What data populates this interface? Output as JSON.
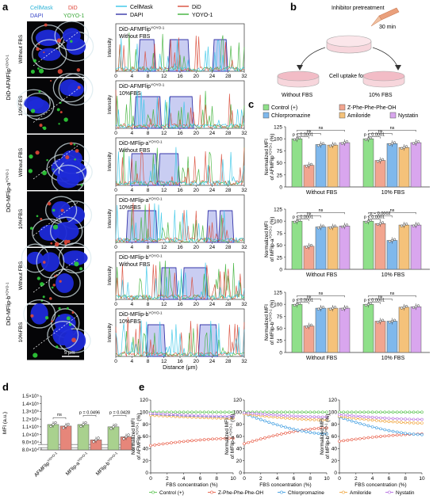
{
  "panels": {
    "a": "a",
    "b": "b",
    "c": "c",
    "d": "d",
    "e": "e"
  },
  "micro": {
    "channels": {
      "cellmask": "CellMask",
      "did": "DiD",
      "dapi": "DAPI",
      "yoyo": "YOYO-1"
    },
    "group_labels": [
      {
        "base": "DiD-AFMFlip",
        "sup": "YOYO-1"
      },
      {
        "base": "DiD-MFlip-a",
        "sup": "YOYO-1"
      },
      {
        "base": "DiD-MFlip-b",
        "sup": "YOYO-1"
      }
    ],
    "row_labels": [
      "Without FBS",
      "10%FBS",
      "Without FBS",
      "10%FBS",
      "Without FBS",
      "10%FBS"
    ],
    "scalebar": "5 μm"
  },
  "profiles": {
    "legend": [
      "CellMask",
      "DiD",
      "DAPI",
      "YOYO-1"
    ],
    "colors": {
      "cellmask": "#39c6e8",
      "did": "#d94d3a",
      "dapi": "#3535a8",
      "yoyo": "#3fb23a"
    },
    "ylabel": "Intensity",
    "xlabel": "Distance (μm)",
    "xticks": [
      "0",
      "4",
      "8",
      "12",
      "16",
      "20",
      "24",
      "28",
      "32"
    ],
    "titles": [
      {
        "base": "DiD-AFMFlip",
        "sup": "YOYO-1",
        "cond": "Without FBS"
      },
      {
        "base": "DiD-AFMFlip",
        "sup": "YOYO-1",
        "cond": "10%FBS"
      },
      {
        "base": "DiD-MFlip-a",
        "sup": "YOYO-1",
        "cond": "Without FBS"
      },
      {
        "base": "DiD-MFlip-a",
        "sup": "YOYO-1",
        "cond": "10%FBS"
      },
      {
        "base": "DiD-MFlip-b",
        "sup": "YOYO-1",
        "cond": "Without FBS"
      },
      {
        "base": "DiD-MFlip-b",
        "sup": "YOYO-1",
        "cond": "10%FBS"
      }
    ],
    "dapi_blocks": [
      [
        [
          6,
          9.5
        ],
        [
          13.5,
          18
        ],
        [
          24.5,
          27.5
        ]
      ],
      [
        [
          5,
          11
        ],
        [
          13.5,
          19
        ]
      ],
      [
        [
          4,
          10
        ],
        [
          11,
          15.5
        ]
      ],
      [
        [
          3,
          10
        ],
        [
          23,
          25
        ],
        [
          26,
          29
        ]
      ],
      [
        [
          11.5,
          15
        ],
        [
          17,
          22.5
        ]
      ],
      [
        [
          8,
          12
        ],
        [
          21,
          25
        ]
      ]
    ]
  },
  "schematic": {
    "inhibitor": "Inhibitor pretreatment",
    "time": "30 min",
    "uptake": "Cell uptake for 2 h",
    "left": "Without FBS",
    "right": "10% FBS"
  },
  "legend_c": [
    {
      "label": "Control (+)",
      "color": "#8fe08a"
    },
    {
      "label": "Z-Phe-Phe-Phe-OH",
      "color": "#f2a58f"
    },
    {
      "label": "Chlorpromazine",
      "color": "#7fb8ec"
    },
    {
      "label": "Amiloride",
      "color": "#f5c27a"
    },
    {
      "label": "Nystatin",
      "color": "#d9a6ee"
    }
  ],
  "c_texts": {
    "ylabels": [
      {
        "l1": "Normalized MFI",
        "l2base": "of AFMFlip",
        "sup": "YOYO-1",
        "tail": " (%)"
      },
      {
        "l1": "Normalized MFI",
        "l2base": "of MFlip-a",
        "sup": "YOYO-1",
        "tail": " (%)"
      },
      {
        "l1": "Normalized MFI",
        "l2base": "of MFlip-b",
        "sup": "YOYO-1",
        "tail": " (%)"
      }
    ],
    "groups": [
      "Without FBS",
      "10% FBS"
    ],
    "ns": "ns",
    "p1": "p < 0.0001",
    "p2": "p = 0.0002",
    "yticks": [
      "0",
      "25",
      "50",
      "75",
      "100",
      "125"
    ]
  },
  "chart_data": [
    {
      "type": "bar",
      "id": "c1",
      "categories": [
        "Without FBS",
        "10% FBS"
      ],
      "series": [
        {
          "name": "Control (+)",
          "values": [
            100,
            100
          ]
        },
        {
          "name": "Z-Phe-Phe-Phe-OH",
          "values": [
            45,
            55
          ]
        },
        {
          "name": "Chlorpromazine",
          "values": [
            88,
            90
          ]
        },
        {
          "name": "Amiloride",
          "values": [
            87,
            82
          ]
        },
        {
          "name": "Nystatin",
          "values": [
            92,
            92
          ]
        }
      ],
      "ylim": [
        0,
        125
      ]
    },
    {
      "type": "bar",
      "id": "c2",
      "categories": [
        "Without FBS",
        "10% FBS"
      ],
      "series": [
        {
          "name": "Control (+)",
          "values": [
            100,
            100
          ]
        },
        {
          "name": "Z-Phe-Phe-Phe-OH",
          "values": [
            48,
            95
          ]
        },
        {
          "name": "Chlorpromazine",
          "values": [
            88,
            60
          ]
        },
        {
          "name": "Amiloride",
          "values": [
            88,
            92
          ]
        },
        {
          "name": "Nystatin",
          "values": [
            90,
            92
          ]
        }
      ],
      "ylim": [
        0,
        125
      ]
    },
    {
      "type": "bar",
      "id": "c3",
      "categories": [
        "Without FBS",
        "10% FBS"
      ],
      "series": [
        {
          "name": "Control (+)",
          "values": [
            100,
            100
          ]
        },
        {
          "name": "Z-Phe-Phe-Phe-OH",
          "values": [
            55,
            65
          ]
        },
        {
          "name": "Chlorpromazine",
          "values": [
            92,
            65
          ]
        },
        {
          "name": "Amiloride",
          "values": [
            92,
            94
          ]
        },
        {
          "name": "Nystatin",
          "values": [
            92,
            95
          ]
        }
      ],
      "ylim": [
        0,
        125
      ]
    },
    {
      "type": "bar",
      "id": "d",
      "ylabel": "MFI (a.u.)",
      "yticks": [
        "8.0×10⁴",
        "9.0×10⁴",
        "1.0×10⁵",
        "1.1×10⁵",
        "1.2×10⁵",
        "1.3×10⁵",
        "1.4×10⁵",
        "1.5×10⁵"
      ],
      "ylim": [
        80000,
        150000
      ],
      "categories": [
        {
          "base": "AFMFlip",
          "sup": "YOYO-1"
        },
        {
          "base": "MFlip-a",
          "sup": "YOYO-1"
        },
        {
          "base": "MFlip-b",
          "sup": "YOYO-1"
        }
      ],
      "series": [
        {
          "name": "Without FBS",
          "values": [
            113000,
            113000,
            110000
          ],
          "color": "#a9d18e"
        },
        {
          "name": "10% FBS",
          "values": [
            111000,
            93000,
            97000
          ],
          "color": "#e6867a"
        }
      ],
      "annotations": [
        "ns",
        "p = 0.0496",
        "p = 0.0428"
      ]
    },
    {
      "type": "line",
      "id": "e",
      "xlabel": "FBS concentration (%)",
      "x": [
        0,
        0.5,
        1,
        1.5,
        2,
        2.5,
        3,
        3.5,
        4,
        4.5,
        5,
        5.5,
        6,
        6.5,
        7,
        7.5,
        8,
        8.5,
        9,
        9.5,
        10
      ],
      "xticks": [
        "0",
        "2",
        "4",
        "6",
        "8",
        "10"
      ],
      "yticks": [
        "0",
        "20",
        "40",
        "60",
        "80",
        "100",
        "120"
      ],
      "ylim": [
        0,
        120
      ],
      "ylabels": [
        {
          "l1": "Normalized MFI",
          "l2base": "of AFMFlip",
          "sup": "YOYO-1",
          "tail": " (%)"
        },
        {
          "l1": "Normalized MFI",
          "l2base": "of MFlip-a",
          "sup": "YOYO-1",
          "tail": " (%)"
        },
        {
          "l1": "Normalized MFI",
          "l2base": "of MFlip-b",
          "sup": "YOYO-1",
          "tail": " (%)"
        }
      ],
      "legend": [
        "Control (+)",
        "Z-Phe-Phe-Phe-OH",
        "Chlorpromazine",
        "Amiloride",
        "Nystatin"
      ],
      "colors": [
        "#55c24a",
        "#e85b45",
        "#3b9be0",
        "#f0a43a",
        "#b46be0"
      ],
      "panels": [
        [
          [
            100,
            100
          ],
          [
            45,
            57
          ],
          [
            96,
            92
          ],
          [
            95,
            90
          ],
          [
            98,
            93
          ]
        ],
        [
          [
            100,
            100
          ],
          [
            48,
            74
          ],
          [
            98,
            64
          ],
          [
            97,
            87
          ],
          [
            99,
            92
          ]
        ],
        [
          [
            100,
            100
          ],
          [
            52,
            64
          ],
          [
            92,
            63
          ],
          [
            93,
            82
          ],
          [
            96,
            88
          ]
        ]
      ]
    }
  ]
}
